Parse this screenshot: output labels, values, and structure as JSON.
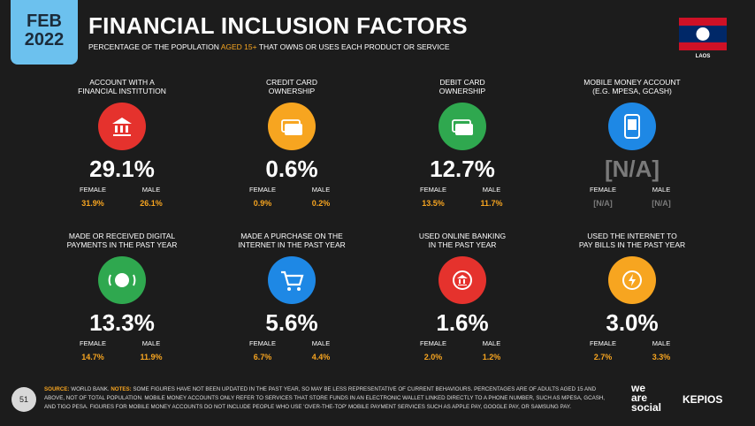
{
  "header": {
    "month": "FEB",
    "year": "2022",
    "title": "FINANCIAL INCLUSION FACTORS",
    "subtitle": [
      "PERCENTAGE OF THE POPULATION ",
      "AGED 15+",
      " THAT OWNS OR USES EACH PRODUCT OR SERVICE"
    ],
    "country": "LAOS"
  },
  "cards": [
    {
      "label": [
        "ACCOUNT WITH A",
        "FINANCIAL INSTITUTION"
      ],
      "color": "#e5322d",
      "value": "29.1%",
      "female_label": "FEMALE",
      "male_label": "MALE",
      "female": "31.9%",
      "male": "26.1%"
    },
    {
      "label": [
        "CREDIT CARD",
        "OWNERSHIP"
      ],
      "color": "#f7a520",
      "value": "0.6%",
      "female_label": "FEMALE",
      "male_label": "MALE",
      "female": "0.9%",
      "male": "0.2%"
    },
    {
      "label": [
        "DEBIT CARD",
        "OWNERSHIP"
      ],
      "color": "#2fa84f",
      "value": "12.7%",
      "female_label": "FEMALE",
      "male_label": "MALE",
      "female": "13.5%",
      "male": "11.7%"
    },
    {
      "label": [
        "MOBILE MONEY ACCOUNT",
        "(E.G. MPESA, GCASH)"
      ],
      "color": "#1e88e5",
      "value": "[N/A]",
      "female_label": "FEMALE",
      "male_label": "MALE",
      "female": "[N/A]",
      "male": "[N/A]",
      "na": true
    },
    {
      "label": [
        "MADE OR RECEIVED DIGITAL",
        "PAYMENTS IN THE PAST YEAR"
      ],
      "color": "#2fa84f",
      "value": "13.3%",
      "female_label": "FEMALE",
      "male_label": "MALE",
      "female": "14.7%",
      "male": "11.9%"
    },
    {
      "label": [
        "MADE A PURCHASE ON THE",
        "INTERNET IN THE PAST YEAR"
      ],
      "color": "#1e88e5",
      "value": "5.6%",
      "female_label": "FEMALE",
      "male_label": "MALE",
      "female": "6.7%",
      "male": "4.4%"
    },
    {
      "label": [
        "USED ONLINE BANKING",
        "IN THE PAST YEAR"
      ],
      "color": "#e5322d",
      "value": "1.6%",
      "female_label": "FEMALE",
      "male_label": "MALE",
      "female": "2.0%",
      "male": "1.2%"
    },
    {
      "label": [
        "USED THE INTERNET TO",
        "PAY BILLS IN THE PAST YEAR"
      ],
      "color": "#f7a520",
      "value": "3.0%",
      "female_label": "FEMALE",
      "male_label": "MALE",
      "female": "2.7%",
      "male": "3.3%"
    }
  ],
  "footer": {
    "page": "51",
    "source_label": "SOURCE:",
    "source": " WORLD BANK. ",
    "notes_label": "NOTES:",
    "notes": " SOME FIGURES HAVE NOT BEEN UPDATED IN THE PAST YEAR, SO MAY BE LESS REPRESENTATIVE OF CURRENT BEHAVIOURS. PERCENTAGES ARE OF ADULTS AGED 15 AND ABOVE, NOT OF TOTAL POPULATION. MOBILE MONEY ACCOUNTS ONLY REFER TO SERVICES THAT STORE FUNDS IN AN ELECTRONIC WALLET LINKED DIRECTLY TO A PHONE NUMBER, SUCH AS MPESA, GCASH, AND TIGO PESA. FIGURES FOR MOBILE MONEY ACCOUNTS DO NOT INCLUDE PEOPLE WHO USE 'OVER-THE-TOP' MOBILE PAYMENT SERVICES SUCH AS APPLE PAY, GOOGLE PAY, OR SAMSUNG PAY.",
    "logo1": [
      "we",
      "are",
      "social"
    ],
    "logo2": "KEPIOS"
  }
}
